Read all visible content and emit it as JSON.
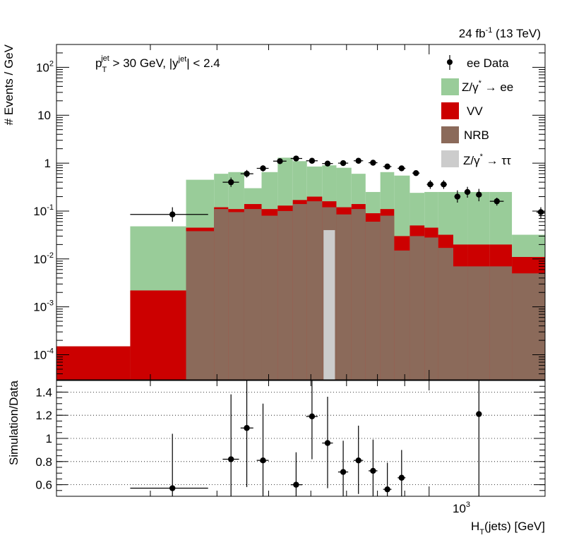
{
  "header": {
    "lumi": "24 fb",
    "lumi_exp": "-1",
    "energy": " (13 TeV)"
  },
  "cut_label": {
    "pt": "p",
    "pt_sub": "T",
    "pt_sup": "jet",
    "pt_cut": " > 30 GeV,  |y",
    "y_sup": "jet",
    "y_cut": "| < 2.4"
  },
  "legend": {
    "data": "ee Data",
    "zee_a": "Z/γ",
    "zee_star": "*",
    "zee_b": " → ee",
    "vv": "VV",
    "nrb": "NRB",
    "ztt_a": "Z/γ",
    "ztt_star": "*",
    "ztt_b": " → ττ"
  },
  "colors": {
    "zee": "#99cc99",
    "vv": "#cc0000",
    "nrb": "#8b6a5a",
    "ztt": "#cccccc"
  },
  "axes": {
    "top_ylabel": "# Events / GeV",
    "bottom_ylabel": "Simulation/Data",
    "xlabel_H": "H",
    "xlabel_sub": "T",
    "xlabel_rest": "(jets) [GeV]",
    "xtick_base": "10",
    "xtick_exp": "3",
    "top_ytick_labels": [
      {
        "base": "10",
        "exp": "2"
      },
      {
        "base": "10",
        "exp": ""
      },
      {
        "base": "1",
        "exp": ""
      },
      {
        "base": "10",
        "exp": "-1"
      },
      {
        "base": "10",
        "exp": "-2"
      },
      {
        "base": "10",
        "exp": "-3"
      },
      {
        "base": "10",
        "exp": "-4"
      }
    ],
    "bottom_ytick_labels": [
      "1.4",
      "1.2",
      "1",
      "0.8",
      "0.6"
    ]
  },
  "chart_data": [
    {
      "type": "bar",
      "stacked": true,
      "x_scale": "log",
      "y_scale": "log",
      "xlim": [
        200,
        1650
      ],
      "ylim": [
        3e-05,
        300
      ],
      "bin_edges": [
        200,
        275,
        350,
        395,
        420,
        450,
        485,
        520,
        555,
        590,
        630,
        670,
        715,
        760,
        810,
        860,
        920,
        980,
        1040,
        1110,
        1180,
        1300,
        1430,
        1650
      ],
      "series": [
        {
          "name": "NRB",
          "values": [
            3e-05,
            3e-05,
            0.038,
            0.11,
            0.095,
            0.11,
            0.08,
            0.1,
            0.14,
            0.16,
            0.12,
            0.085,
            0.11,
            0.06,
            0.08,
            0.015,
            0.03,
            0.028,
            0.017,
            0.007,
            0.007,
            0.007,
            0.005
          ]
        },
        {
          "name": "VV",
          "values": [
            0.00015,
            0.0022,
            0.045,
            0.12,
            0.11,
            0.14,
            0.11,
            0.13,
            0.17,
            0.2,
            0.16,
            0.12,
            0.14,
            0.09,
            0.11,
            0.03,
            0.05,
            0.045,
            0.032,
            0.02,
            0.02,
            0.02,
            0.011
          ]
        },
        {
          "name": "Z/γ* → ee",
          "values": [
            0.00015,
            0.048,
            0.45,
            0.6,
            0.65,
            0.3,
            0.65,
            1.3,
            1.1,
            0.85,
            0.9,
            0.8,
            0.6,
            0.25,
            0.65,
            0.55,
            0.24,
            0.25,
            0.25,
            0.25,
            0.25,
            0.25,
            0.032
          ]
        },
        {
          "name": "Z/γ* → ττ",
          "values": [
            null,
            null,
            null,
            null,
            null,
            null,
            null,
            null,
            null,
            null,
            0.04,
            null,
            null,
            null,
            null,
            null,
            null,
            null,
            null,
            null,
            null,
            null,
            null
          ]
        }
      ],
      "data": {
        "name": "ee Data",
        "points": [
          {
            "x": 330,
            "y": 0.085,
            "xlo": 275,
            "xhi": 385,
            "ylo": 0.06,
            "yhi": 0.12
          },
          {
            "x": 425,
            "y": 0.4,
            "xlo": 410,
            "xhi": 440,
            "ylo": 0.32,
            "yhi": 0.5
          },
          {
            "x": 455,
            "y": 0.6,
            "xlo": 443,
            "xhi": 468,
            "ylo": 0.5,
            "yhi": 0.72
          },
          {
            "x": 488,
            "y": 0.78,
            "xlo": 475,
            "xhi": 500,
            "ylo": 0.67,
            "yhi": 0.9
          },
          {
            "x": 525,
            "y": 1.1,
            "xlo": 510,
            "xhi": 540,
            "ylo": 0.98,
            "yhi": 1.22
          },
          {
            "x": 563,
            "y": 1.25,
            "xlo": 550,
            "xhi": 578,
            "ylo": 1.13,
            "yhi": 1.37
          },
          {
            "x": 603,
            "y": 1.12,
            "xlo": 588,
            "xhi": 618,
            "ylo": 1.02,
            "yhi": 1.23
          },
          {
            "x": 645,
            "y": 0.98,
            "xlo": 630,
            "xhi": 660,
            "ylo": 0.9,
            "yhi": 1.07
          },
          {
            "x": 690,
            "y": 1.0,
            "xlo": 675,
            "xhi": 705,
            "ylo": 0.91,
            "yhi": 1.09
          },
          {
            "x": 737,
            "y": 1.12,
            "xlo": 722,
            "xhi": 752,
            "ylo": 1.02,
            "yhi": 1.22
          },
          {
            "x": 785,
            "y": 1.02,
            "xlo": 770,
            "xhi": 800,
            "ylo": 0.93,
            "yhi": 1.11
          },
          {
            "x": 835,
            "y": 0.85,
            "xlo": 820,
            "xhi": 850,
            "ylo": 0.77,
            "yhi": 0.93
          },
          {
            "x": 888,
            "y": 0.78,
            "xlo": 873,
            "xhi": 903,
            "ylo": 0.7,
            "yhi": 0.86
          },
          {
            "x": 945,
            "y": 0.62,
            "xlo": 930,
            "xhi": 960,
            "ylo": 0.54,
            "yhi": 0.7
          },
          {
            "x": 1005,
            "y": 0.36,
            "xlo": 990,
            "xhi": 1020,
            "ylo": 0.29,
            "yhi": 0.44
          },
          {
            "x": 1065,
            "y": 0.36,
            "xlo": 1050,
            "xhi": 1080,
            "ylo": 0.29,
            "yhi": 0.44
          },
          {
            "x": 1130,
            "y": 0.2,
            "xlo": 1115,
            "xhi": 1145,
            "ylo": 0.15,
            "yhi": 0.27
          },
          {
            "x": 1180,
            "y": 0.25,
            "xlo": 1165,
            "xhi": 1195,
            "ylo": 0.19,
            "yhi": 0.32
          },
          {
            "x": 1240,
            "y": 0.22,
            "xlo": 1225,
            "xhi": 1255,
            "ylo": 0.16,
            "yhi": 0.29
          },
          {
            "x": 1340,
            "y": 0.16,
            "xlo": 1300,
            "xhi": 1380,
            "ylo": 0.13,
            "yhi": 0.19
          },
          {
            "x": 1620,
            "y": 0.095,
            "xlo": 1590,
            "xhi": 1650,
            "ylo": 0.07,
            "yhi": 0.12
          }
        ]
      },
      "title": "",
      "xlabel": "H_T(jets) [GeV]",
      "ylabel": "# Events / GeV",
      "legend_position": "top-right",
      "grid": false
    },
    {
      "type": "scatter",
      "x_scale": "log",
      "xlim": [
        200,
        1650
      ],
      "ylim": [
        0.5,
        1.5
      ],
      "ylabel": "Simulation/Data",
      "xlabel": "H_T(jets) [GeV]",
      "grid": "horizontal dotted",
      "points": [
        {
          "x": 330,
          "y": 0.57,
          "xlo": 275,
          "xhi": 385,
          "ylo": 0.5,
          "yhi": 1.04
        },
        {
          "x": 425,
          "y": 0.82,
          "xlo": 410,
          "xhi": 440,
          "ylo": 0.5,
          "yhi": 1.38
        },
        {
          "x": 455,
          "y": 1.09,
          "xlo": 443,
          "xhi": 468,
          "ylo": 0.58,
          "yhi": 1.5
        },
        {
          "x": 488,
          "y": 0.81,
          "xlo": 475,
          "xhi": 500,
          "ylo": 0.5,
          "yhi": 1.3
        },
        {
          "x": 563,
          "y": 0.6,
          "xlo": 550,
          "xhi": 578,
          "ylo": 0.5,
          "yhi": 0.88
        },
        {
          "x": 603,
          "y": 1.19,
          "xlo": 588,
          "xhi": 618,
          "ylo": 0.82,
          "yhi": 1.5
        },
        {
          "x": 645,
          "y": 0.96,
          "xlo": 630,
          "xhi": 660,
          "ylo": 0.57,
          "yhi": 1.36
        },
        {
          "x": 690,
          "y": 0.71,
          "xlo": 675,
          "xhi": 705,
          "ylo": 0.5,
          "yhi": 0.98
        },
        {
          "x": 737,
          "y": 0.81,
          "xlo": 722,
          "xhi": 752,
          "ylo": 0.52,
          "yhi": 1.11
        },
        {
          "x": 785,
          "y": 0.72,
          "xlo": 770,
          "xhi": 800,
          "ylo": 0.5,
          "yhi": 0.99
        },
        {
          "x": 835,
          "y": 0.56,
          "xlo": 820,
          "xhi": 850,
          "ylo": 0.5,
          "yhi": 0.79
        },
        {
          "x": 888,
          "y": 0.66,
          "xlo": 873,
          "xhi": 903,
          "ylo": 0.5,
          "yhi": 0.9
        },
        {
          "x": 1240,
          "y": 1.21,
          "xlo": 1225,
          "xhi": 1255,
          "ylo": 0.5,
          "yhi": 1.5
        }
      ]
    }
  ]
}
